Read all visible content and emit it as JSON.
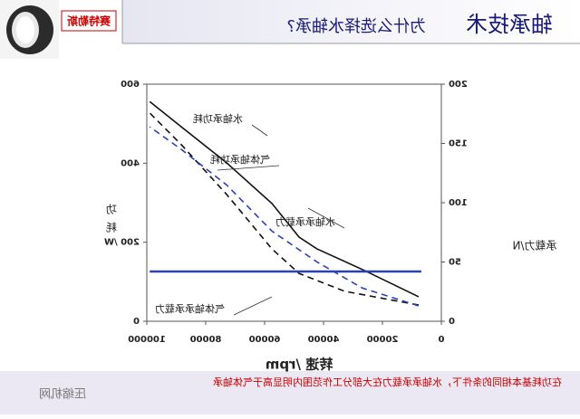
{
  "header": {
    "logo_text": "赛特勒斯",
    "title": "轴承技术",
    "subtitle": "为什么选择水轴承?"
  },
  "chart_data": {
    "type": "line",
    "xlabel": "转速 /rpm",
    "ylabel": "承载力/N",
    "y2label": "功耗",
    "xlim": [
      0,
      100000
    ],
    "xticks": [
      0,
      20000,
      40000,
      60000,
      80000,
      100000
    ],
    "ylim": [
      0,
      200
    ],
    "yticks": [
      0,
      50,
      100,
      150,
      200
    ],
    "y2lim": [
      0,
      600
    ],
    "y2ticks": [
      0,
      {
        "value": 200,
        "label": "200 /W"
      },
      400,
      600
    ],
    "series": [
      {
        "name": "水轴承功耗",
        "color": "#111111",
        "dash": "none",
        "axis": "y2",
        "x": [
          7700,
          26800,
          42200,
          48300,
          57500,
          72900,
          88300,
          99000
        ],
        "values": [
          62,
          131,
          183,
          213,
          298,
          401,
          492,
          556
        ]
      },
      {
        "name": "气体轴承功耗",
        "color": "#111111",
        "dash": "7 5",
        "axis": "y2",
        "x": [
          7700,
          32900,
          48300,
          57500,
          72900,
          88300,
          99000
        ],
        "values": [
          41,
          76,
          121,
          183,
          321,
          447,
          527
        ]
      },
      {
        "name": "水轴承承载力",
        "color": "#2a3fc0",
        "dash": "7 5",
        "axis": "y",
        "x": [
          7700,
          26800,
          42200,
          57500,
          72900,
          88300,
          99000
        ],
        "values": [
          13,
          28,
          50,
          76,
          115,
          145,
          164
        ]
      },
      {
        "name": "气体轴承承载力",
        "color": "#2a3fc0",
        "dash": "none",
        "axis": "y",
        "x": [
          6800,
          99000
        ],
        "values": [
          42,
          42
        ]
      }
    ]
  },
  "footer": {
    "note": "在功耗基本相同的条件下，水轴承承载力在大部分工作范围内明显高于气体轴承",
    "watermark": "压缩机网"
  }
}
